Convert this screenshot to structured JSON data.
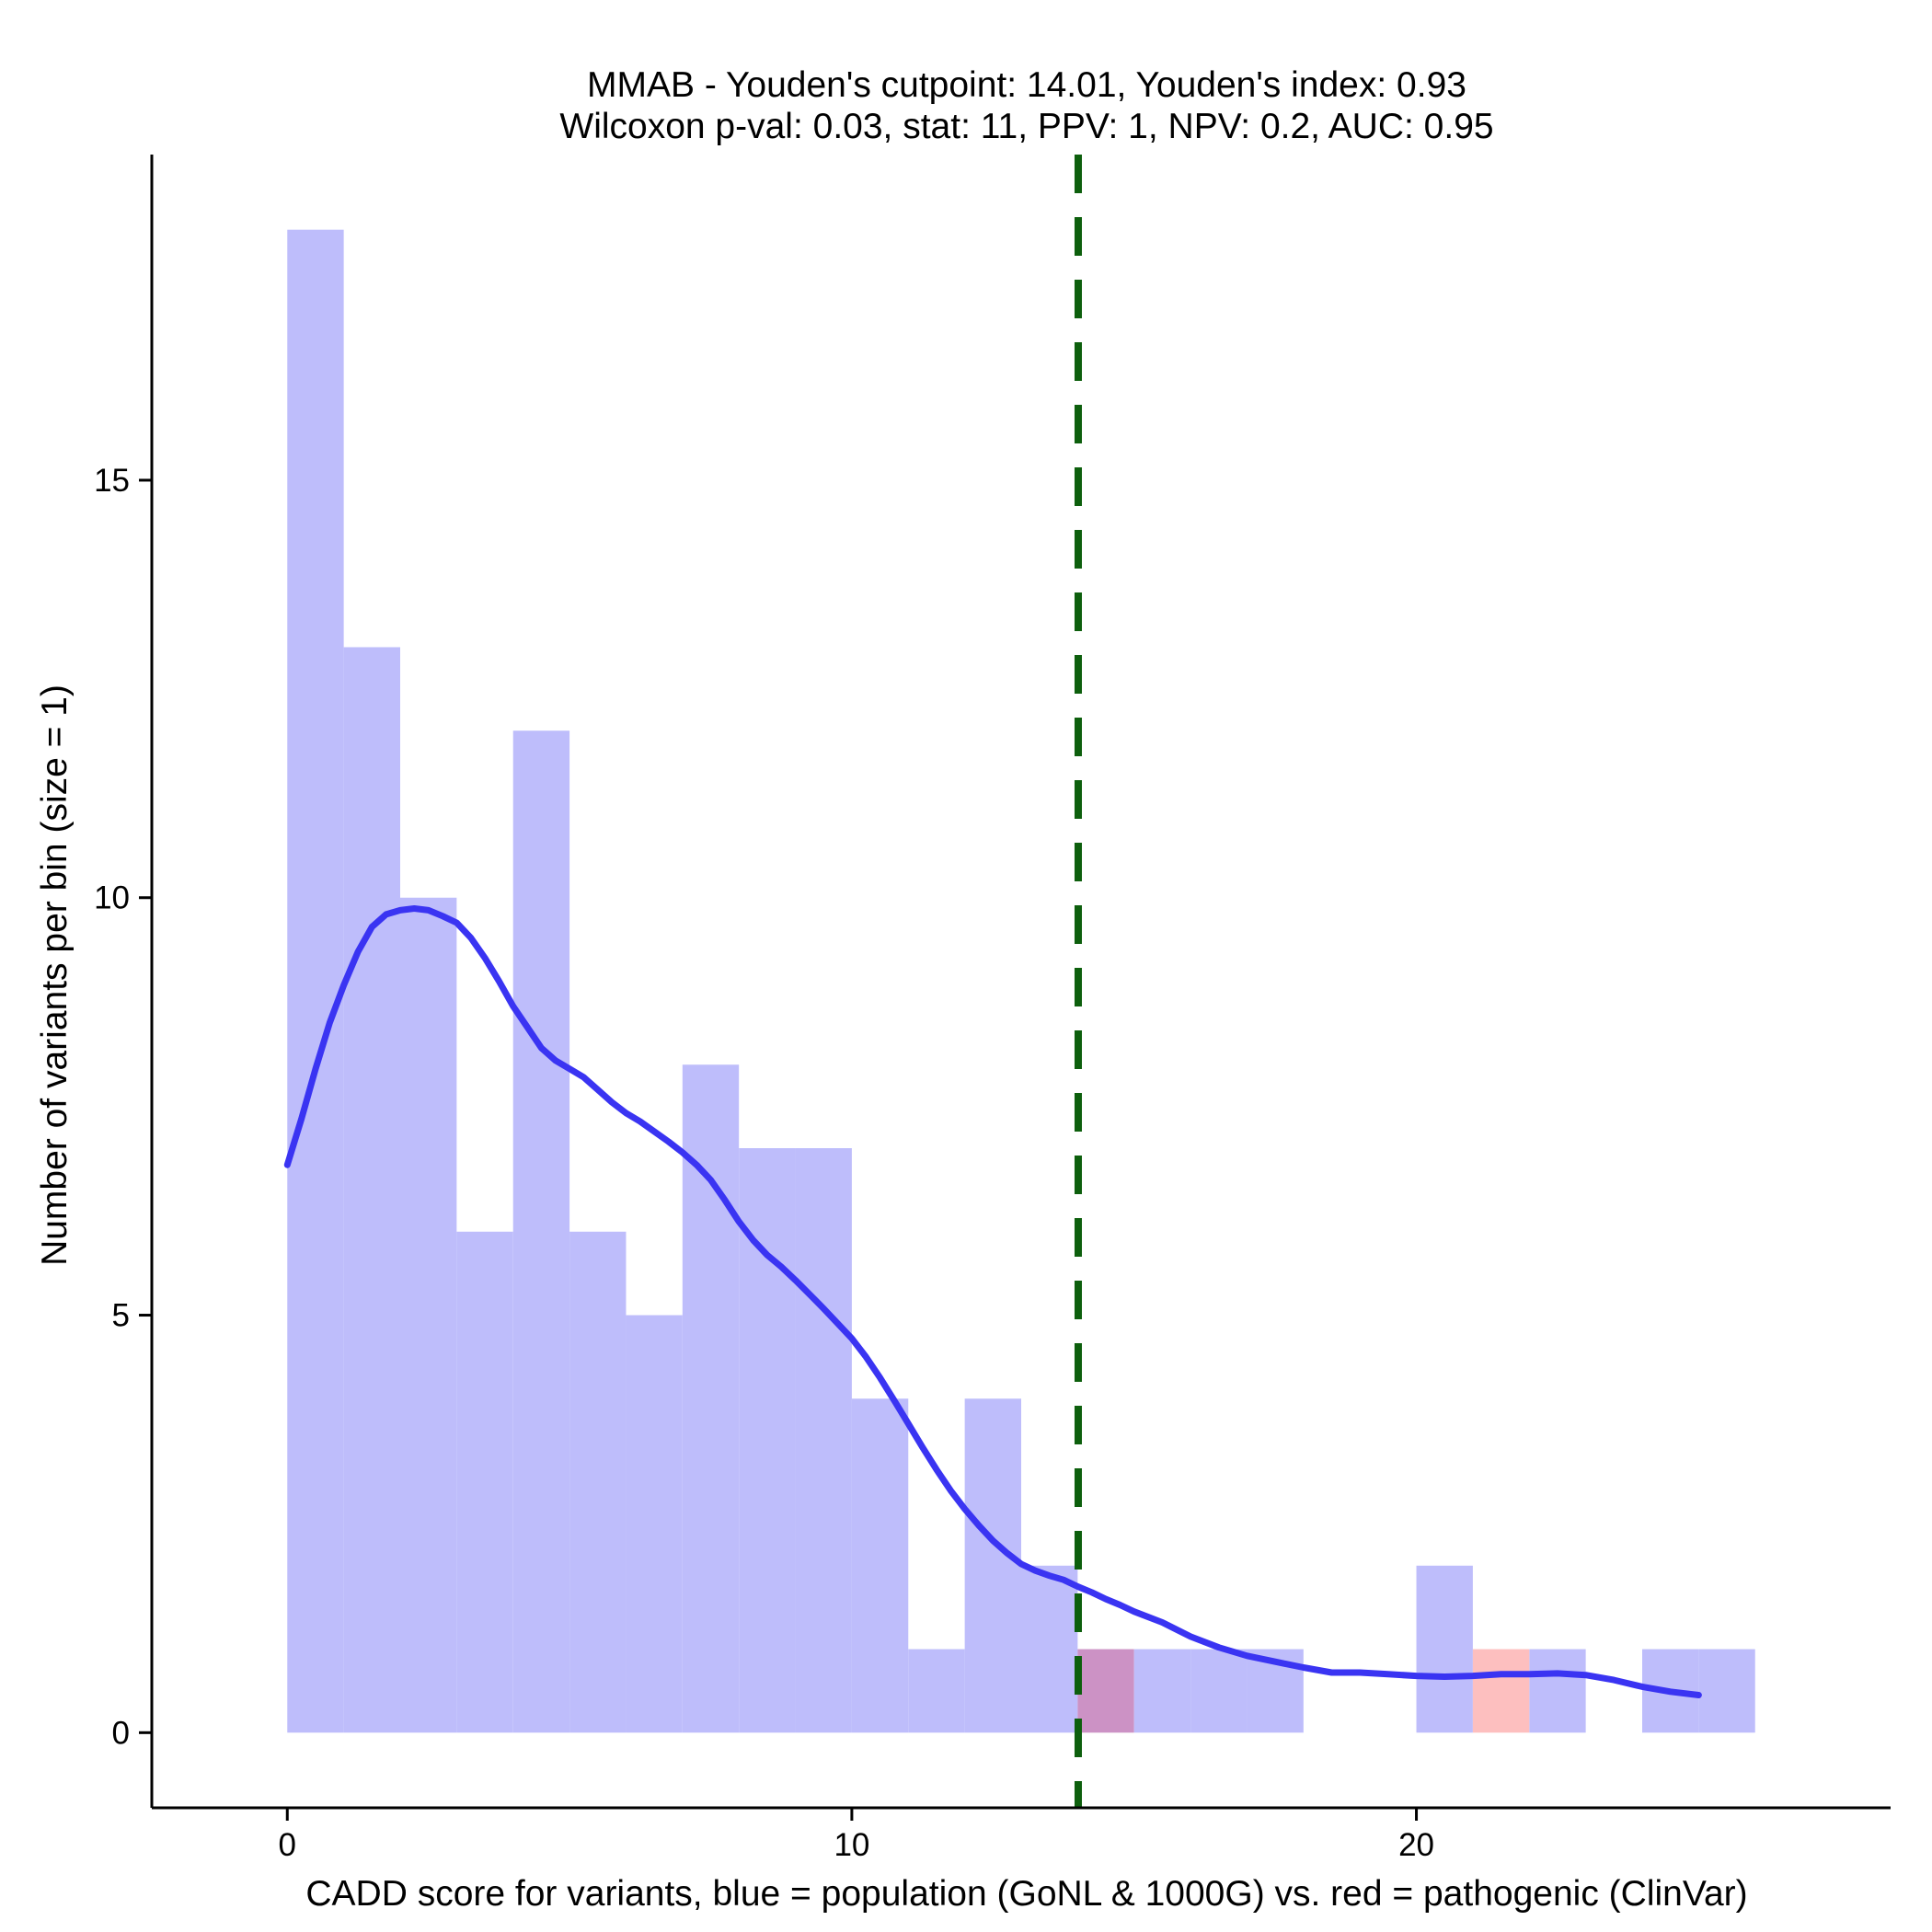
{
  "chart_data": {
    "type": "bar",
    "title_lines": [
      "MMAB - Youden's cutpoint: 14.01, Youden's index: 0.93",
      "Wilcoxon p-val: 0.03, stat: 11, PPV: 1, NPV: 0.2, AUC: 0.95"
    ],
    "xlabel": "CADD score for variants, blue = population (GoNL & 1000G) vs. red = pathogenic (ClinVar)",
    "ylabel": "Number of variants per bin (size = 1)",
    "xlim": [
      -2.4,
      28.4
    ],
    "ylim": [
      -0.9,
      18.9
    ],
    "x_ticks": [
      0,
      10,
      20
    ],
    "y_ticks": [
      0,
      5,
      10,
      15
    ],
    "bin_size": 1,
    "series": [
      {
        "name": "population (GoNL & 1000G)",
        "color": "#bebdfb",
        "bins": [
          {
            "x0": 0,
            "x1": 1,
            "count": 18
          },
          {
            "x0": 1,
            "x1": 2,
            "count": 13
          },
          {
            "x0": 2,
            "x1": 3,
            "count": 10
          },
          {
            "x0": 3,
            "x1": 4,
            "count": 6
          },
          {
            "x0": 4,
            "x1": 5,
            "count": 12
          },
          {
            "x0": 5,
            "x1": 6,
            "count": 6
          },
          {
            "x0": 6,
            "x1": 7,
            "count": 5
          },
          {
            "x0": 7,
            "x1": 8,
            "count": 8
          },
          {
            "x0": 8,
            "x1": 9,
            "count": 7
          },
          {
            "x0": 9,
            "x1": 10,
            "count": 7
          },
          {
            "x0": 10,
            "x1": 11,
            "count": 4
          },
          {
            "x0": 11,
            "x1": 12,
            "count": 1
          },
          {
            "x0": 12,
            "x1": 13,
            "count": 4
          },
          {
            "x0": 13,
            "x1": 14,
            "count": 2
          },
          {
            "x0": 14,
            "x1": 15,
            "count": 1
          },
          {
            "x0": 15,
            "x1": 16,
            "count": 1
          },
          {
            "x0": 16,
            "x1": 17,
            "count": 1
          },
          {
            "x0": 17,
            "x1": 18,
            "count": 1
          },
          {
            "x0": 20,
            "x1": 21,
            "count": 2
          },
          {
            "x0": 22,
            "x1": 23,
            "count": 1
          },
          {
            "x0": 24,
            "x1": 25,
            "count": 1
          },
          {
            "x0": 25,
            "x1": 26,
            "count": 1
          }
        ]
      },
      {
        "name": "pathogenic (ClinVar)",
        "color": "#fdbfbf",
        "overlap_color": "#cc92c5",
        "bins": [
          {
            "x0": 14,
            "x1": 15,
            "count": 1
          },
          {
            "x0": 21,
            "x1": 22,
            "count": 1
          }
        ]
      }
    ],
    "density_curve": {
      "name": "population density",
      "color": "#3a34f2",
      "points": [
        [
          0,
          6.8
        ],
        [
          0.25,
          7.35
        ],
        [
          0.5,
          7.95
        ],
        [
          0.75,
          8.5
        ],
        [
          1,
          8.95
        ],
        [
          1.25,
          9.35
        ],
        [
          1.5,
          9.65
        ],
        [
          1.75,
          9.8
        ],
        [
          2,
          9.85
        ],
        [
          2.25,
          9.87
        ],
        [
          2.5,
          9.85
        ],
        [
          2.75,
          9.78
        ],
        [
          3,
          9.7
        ],
        [
          3.25,
          9.52
        ],
        [
          3.5,
          9.28
        ],
        [
          3.75,
          9.0
        ],
        [
          4,
          8.7
        ],
        [
          4.25,
          8.45
        ],
        [
          4.5,
          8.2
        ],
        [
          4.75,
          8.05
        ],
        [
          5,
          7.95
        ],
        [
          5.25,
          7.85
        ],
        [
          5.5,
          7.7
        ],
        [
          5.75,
          7.55
        ],
        [
          6,
          7.42
        ],
        [
          6.25,
          7.32
        ],
        [
          6.5,
          7.2
        ],
        [
          6.75,
          7.08
        ],
        [
          7,
          6.95
        ],
        [
          7.25,
          6.8
        ],
        [
          7.5,
          6.62
        ],
        [
          7.75,
          6.38
        ],
        [
          8,
          6.12
        ],
        [
          8.25,
          5.9
        ],
        [
          8.5,
          5.72
        ],
        [
          8.75,
          5.58
        ],
        [
          9,
          5.42
        ],
        [
          9.25,
          5.25
        ],
        [
          9.5,
          5.08
        ],
        [
          9.75,
          4.9
        ],
        [
          10,
          4.72
        ],
        [
          10.25,
          4.5
        ],
        [
          10.5,
          4.25
        ],
        [
          10.75,
          3.98
        ],
        [
          11,
          3.7
        ],
        [
          11.25,
          3.42
        ],
        [
          11.5,
          3.15
        ],
        [
          11.75,
          2.9
        ],
        [
          12,
          2.68
        ],
        [
          12.25,
          2.48
        ],
        [
          12.5,
          2.3
        ],
        [
          12.75,
          2.15
        ],
        [
          13,
          2.02
        ],
        [
          13.25,
          1.94
        ],
        [
          13.5,
          1.88
        ],
        [
          13.75,
          1.83
        ],
        [
          14,
          1.75
        ],
        [
          14.25,
          1.68
        ],
        [
          14.5,
          1.6
        ],
        [
          14.75,
          1.53
        ],
        [
          15,
          1.45
        ],
        [
          15.5,
          1.32
        ],
        [
          16,
          1.15
        ],
        [
          16.5,
          1.02
        ],
        [
          17,
          0.92
        ],
        [
          17.5,
          0.85
        ],
        [
          18,
          0.78
        ],
        [
          18.5,
          0.72
        ],
        [
          19,
          0.72
        ],
        [
          19.5,
          0.7
        ],
        [
          20,
          0.68
        ],
        [
          20.5,
          0.67
        ],
        [
          21,
          0.68
        ],
        [
          21.5,
          0.7
        ],
        [
          22,
          0.7
        ],
        [
          22.5,
          0.71
        ],
        [
          23,
          0.69
        ],
        [
          23.5,
          0.63
        ],
        [
          24,
          0.55
        ],
        [
          24.5,
          0.49
        ],
        [
          25,
          0.45
        ]
      ]
    },
    "cutpoint": {
      "label": "Youden's cutpoint",
      "value": 14.01,
      "color": "#0d5f0d"
    },
    "axis_color": "#000000"
  }
}
